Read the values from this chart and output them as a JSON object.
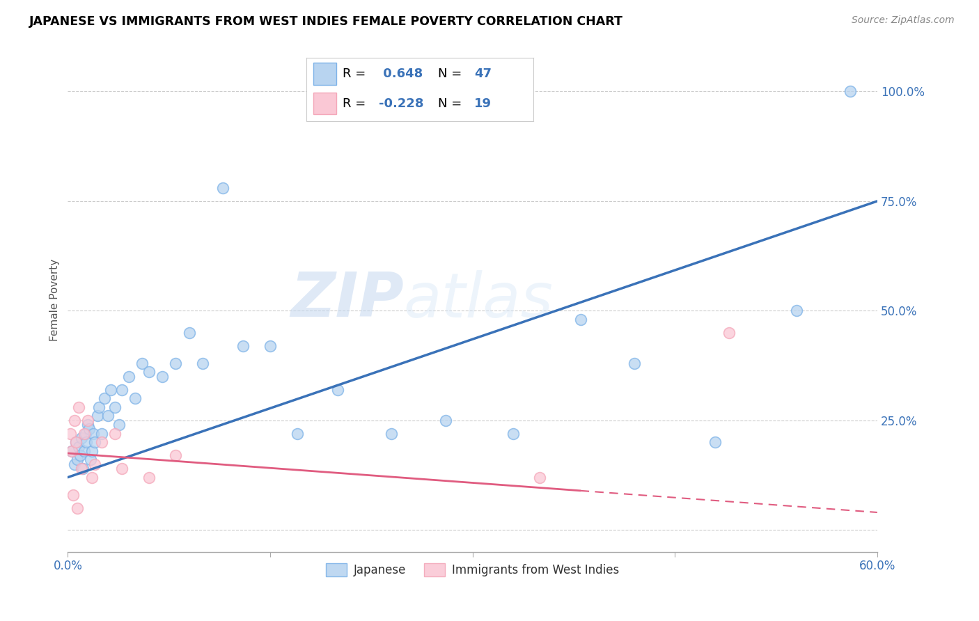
{
  "title": "JAPANESE VS IMMIGRANTS FROM WEST INDIES FEMALE POVERTY CORRELATION CHART",
  "source": "Source: ZipAtlas.com",
  "ylabel": "Female Poverty",
  "y_ticks": [
    0.0,
    0.25,
    0.5,
    0.75,
    1.0
  ],
  "y_tick_labels": [
    "",
    "25.0%",
    "50.0%",
    "75.0%",
    "100.0%"
  ],
  "x_range": [
    0.0,
    0.6
  ],
  "y_range": [
    -0.05,
    1.1
  ],
  "blue_R": 0.648,
  "blue_N": 47,
  "pink_R": -0.228,
  "pink_N": 19,
  "blue_color": "#7EB3E8",
  "pink_color": "#F4A7B9",
  "blue_line_color": "#3A72B8",
  "pink_line_color": "#E05C80",
  "watermark_zip": "ZIP",
  "watermark_atlas": "atlas",
  "legend_label_blue": "Japanese",
  "legend_label_pink": "Immigrants from West Indies",
  "blue_scatter_x": [
    0.003,
    0.005,
    0.006,
    0.007,
    0.008,
    0.009,
    0.01,
    0.011,
    0.012,
    0.013,
    0.014,
    0.015,
    0.016,
    0.017,
    0.018,
    0.019,
    0.02,
    0.022,
    0.023,
    0.025,
    0.027,
    0.03,
    0.032,
    0.035,
    0.038,
    0.04,
    0.045,
    0.05,
    0.055,
    0.06,
    0.07,
    0.08,
    0.09,
    0.1,
    0.115,
    0.13,
    0.15,
    0.17,
    0.2,
    0.24,
    0.28,
    0.33,
    0.38,
    0.42,
    0.48,
    0.54,
    0.58
  ],
  "blue_scatter_y": [
    0.18,
    0.15,
    0.2,
    0.16,
    0.19,
    0.17,
    0.21,
    0.14,
    0.18,
    0.22,
    0.2,
    0.24,
    0.23,
    0.16,
    0.18,
    0.22,
    0.2,
    0.26,
    0.28,
    0.22,
    0.3,
    0.26,
    0.32,
    0.28,
    0.24,
    0.32,
    0.35,
    0.3,
    0.38,
    0.36,
    0.35,
    0.38,
    0.45,
    0.38,
    0.78,
    0.42,
    0.42,
    0.22,
    0.32,
    0.22,
    0.25,
    0.22,
    0.48,
    0.38,
    0.2,
    0.5,
    1.0
  ],
  "pink_scatter_x": [
    0.002,
    0.003,
    0.004,
    0.005,
    0.006,
    0.007,
    0.008,
    0.01,
    0.012,
    0.015,
    0.018,
    0.02,
    0.025,
    0.035,
    0.04,
    0.06,
    0.08,
    0.35,
    0.49
  ],
  "pink_scatter_y": [
    0.22,
    0.18,
    0.08,
    0.25,
    0.2,
    0.05,
    0.28,
    0.14,
    0.22,
    0.25,
    0.12,
    0.15,
    0.2,
    0.22,
    0.14,
    0.12,
    0.17,
    0.12,
    0.45
  ],
  "blue_line_x": [
    0.0,
    0.6
  ],
  "blue_line_y": [
    0.12,
    0.75
  ],
  "pink_line_x": [
    0.0,
    0.6
  ],
  "pink_line_y": [
    0.175,
    0.04
  ]
}
